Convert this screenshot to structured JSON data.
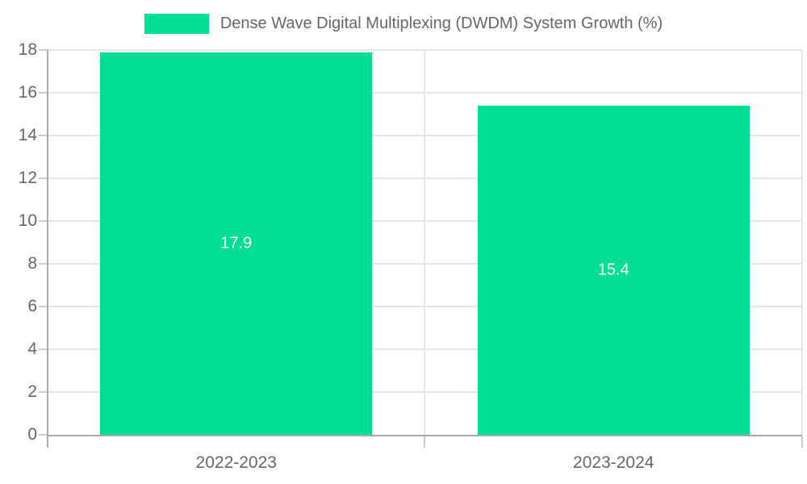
{
  "chart": {
    "legend": {
      "label": "Dense Wave Digital Multiplexing (DWDM) System Growth (%)"
    }
  },
  "chart_data": {
    "type": "bar",
    "title": "",
    "xlabel": "",
    "ylabel": "",
    "categories": [
      "2022-2023",
      "2023-2024"
    ],
    "series": [
      {
        "name": "Dense Wave Digital Multiplexing (DWDM) System Growth (%)",
        "values": [
          17.9,
          15.4
        ]
      }
    ],
    "data_labels": [
      "17.9",
      "15.4"
    ],
    "ylim": [
      0,
      18
    ],
    "yticks": [
      0,
      2,
      4,
      6,
      8,
      10,
      12,
      14,
      16,
      18
    ],
    "grid": true,
    "legend_position": "top-center",
    "colors": {
      "bar": "#00DE94",
      "data_label": "#ffffff",
      "tick_label": "#666666",
      "legend_text": "#666666",
      "gridline": "#e6e6e6",
      "tick_mark": "#cccccc",
      "axis_line": "#a9a9a9",
      "background": "#ffffff"
    }
  }
}
